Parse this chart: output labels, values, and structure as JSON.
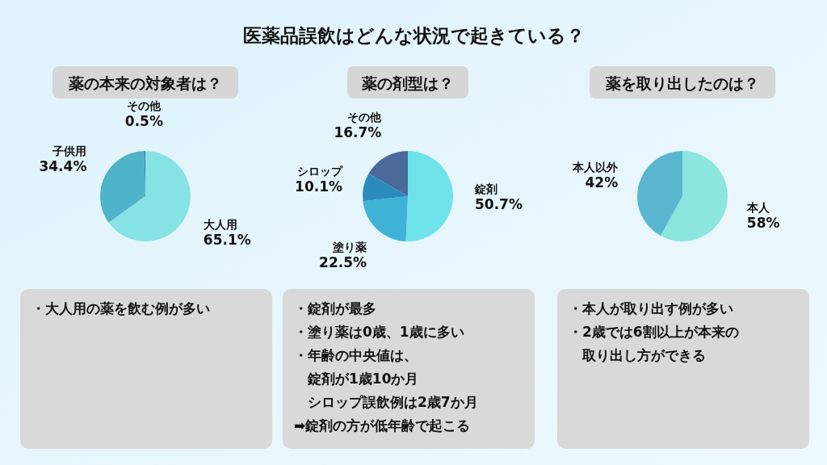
{
  "chart_data": [
    {
      "type": "other",
      "title": "医薬品誤飲はどんな状況で起きている？"
    },
    {
      "type": "pie",
      "subtitle": "薬の本来の対象者は？",
      "categories": [
        "大人用",
        "子供用",
        "その他"
      ],
      "values": [
        65.1,
        34.4,
        0.5
      ],
      "colors": [
        "#86e3e3",
        "#4fb3c9",
        "#3d7fa8"
      ],
      "value_labels": [
        "65.1%",
        "34.4%",
        "0.5%"
      ],
      "annotations": [
        "・大人用の薬を飲む例が多い"
      ]
    },
    {
      "type": "pie",
      "subtitle": "薬の剤型は？",
      "categories": [
        "錠剤",
        "塗り薬",
        "シロップ",
        "その他"
      ],
      "values": [
        50.7,
        22.5,
        10.1,
        16.7
      ],
      "colors": [
        "#6ee4ea",
        "#3fb3d6",
        "#2a8cbc",
        "#4a6a9c"
      ],
      "value_labels": [
        "50.7%",
        "22.5%",
        "10.1%",
        "16.7%"
      ],
      "annotations": [
        "・錠剤が最多",
        "・塗り薬は0歳、1歳に多い",
        "・年齢の中央値は、",
        "　錠剤が1歳10か月",
        "　シロップ誤飲例は2歳7か月",
        "➡錠剤の方が低年齢で起こる"
      ]
    },
    {
      "type": "pie",
      "subtitle": "薬を取り出したのは？",
      "categories": [
        "本人",
        "本人以外"
      ],
      "values": [
        58,
        42
      ],
      "colors": [
        "#8ce6e0",
        "#5ab6cf"
      ],
      "value_labels": [
        "58%",
        "42%"
      ],
      "annotations": [
        "・本人が取り出す例が多い",
        "・2歳では6割以上が本来の",
        "　取り出し方ができる"
      ]
    }
  ]
}
